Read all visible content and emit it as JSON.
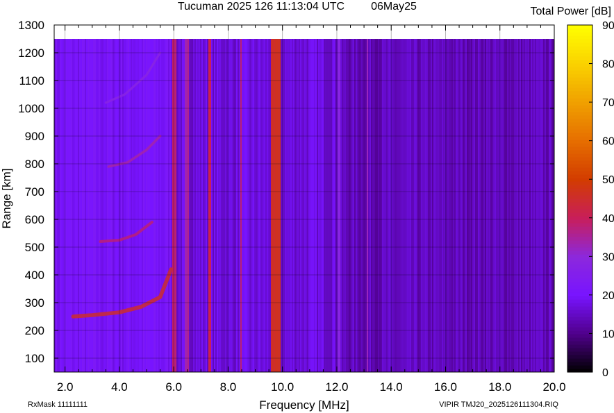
{
  "header": {
    "title": "Tucuman 2025 126 11:13:04 UTC",
    "date": "06May25",
    "colorbar_title": "Total Power [dB]"
  },
  "footer": {
    "rxmask": "RxMask 11111111",
    "file": "VIPIR  TMJ20_2025126111304.RIQ"
  },
  "chart_data": {
    "type": "heatmap",
    "xlabel": "Frequency [MHz]",
    "ylabel": "Range [km]",
    "xlim": [
      1.6,
      20.0
    ],
    "ylim": [
      50,
      1300
    ],
    "data_top_range_km": 1250,
    "x_ticks": [
      2.0,
      4.0,
      6.0,
      8.0,
      10.0,
      12.0,
      14.0,
      16.0,
      18.0,
      20.0
    ],
    "x_tick_labels": [
      "2.0",
      "4.0",
      "6.0",
      "8.0",
      "10.0",
      "12.0",
      "14.0",
      "16.0",
      "18.0",
      "20.0"
    ],
    "y_ticks": [
      100,
      200,
      300,
      400,
      500,
      600,
      700,
      800,
      900,
      1000,
      1100,
      1200,
      1300
    ],
    "y_tick_labels": [
      "100",
      "200",
      "300",
      "400",
      "500",
      "600",
      "700",
      "800",
      "900",
      "1000",
      "1100",
      "1200",
      "1300"
    ],
    "grid": true,
    "colorbar": {
      "range": [
        0,
        90
      ],
      "ticks": [
        0,
        10,
        20,
        30,
        40,
        50,
        60,
        70,
        80,
        90
      ],
      "tick_labels": [
        "0",
        "10",
        "20",
        "30",
        "40",
        "50",
        "60",
        "70",
        "80",
        "90"
      ]
    },
    "background_dB_low_band": 20,
    "background_dB_high_band": 14,
    "interference_bands": [
      {
        "f": 6.0,
        "w": 0.15,
        "dB": 40
      },
      {
        "f": 6.45,
        "w": 0.12,
        "dB": 36
      },
      {
        "f": 7.3,
        "w": 0.15,
        "dB": 42
      },
      {
        "f": 8.45,
        "w": 0.1,
        "dB": 38
      },
      {
        "f": 9.72,
        "w": 0.35,
        "dB": 48
      },
      {
        "f": 12.05,
        "w": 0.1,
        "dB": 30
      },
      {
        "f": 13.1,
        "w": 0.1,
        "dB": 34
      }
    ],
    "echo_traces": [
      {
        "points": [
          [
            2.3,
            250
          ],
          [
            3.0,
            255
          ],
          [
            4.0,
            265
          ],
          [
            4.8,
            285
          ],
          [
            5.5,
            320
          ],
          [
            5.9,
            420
          ]
        ],
        "dB": 45,
        "width_km": 14
      },
      {
        "points": [
          [
            3.3,
            520
          ],
          [
            4.0,
            525
          ],
          [
            4.6,
            545
          ],
          [
            5.2,
            590
          ]
        ],
        "dB": 38,
        "width_km": 10
      },
      {
        "points": [
          [
            3.6,
            790
          ],
          [
            4.3,
            805
          ],
          [
            5.0,
            850
          ],
          [
            5.5,
            900
          ]
        ],
        "dB": 34,
        "width_km": 9
      },
      {
        "points": [
          [
            3.5,
            1020
          ],
          [
            4.2,
            1050
          ],
          [
            5.0,
            1120
          ],
          [
            5.5,
            1200
          ]
        ],
        "dB": 28,
        "width_km": 8
      }
    ]
  }
}
